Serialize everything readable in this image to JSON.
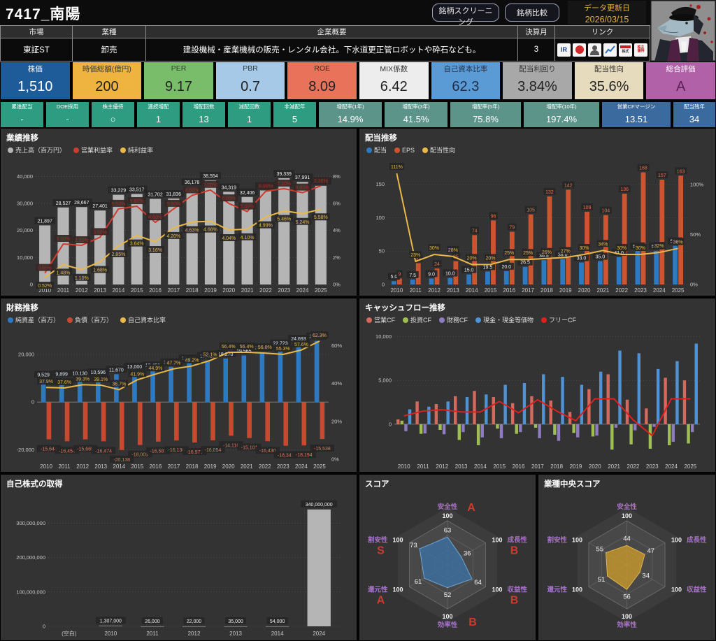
{
  "header": {
    "title": "7417_南陽",
    "screening_button": "銘柄スクリーニング",
    "compare_button": "銘柄比較",
    "update_label": "データ更新日",
    "update_date": "2026/03/15"
  },
  "info": {
    "market_label": "市場",
    "market_value": "東証ST",
    "industry_label": "業種",
    "industry_value": "卸売",
    "profile_label": "企業概要",
    "profile_value": "建設機械・産業機械の販売・レンタル会社。下水道更正管ロボットや砕石なども。",
    "fiscal_label": "決算月",
    "fiscal_value": "3",
    "links_label": "リンク",
    "links": {
      "ir": "IR",
      "minkabu": "株式",
      "yutai_line1": "株主",
      "yutai_line2": "優待"
    }
  },
  "metrics_primary": [
    {
      "label": "株価",
      "value": "1,510",
      "bg": "#1e5c99",
      "fg": "#ffffff",
      "label_fg": "#ffffff"
    },
    {
      "label": "時価総額(億円)",
      "value": "200",
      "bg": "#efb33f",
      "fg": "#222222",
      "label_fg": "#3a3a3a"
    },
    {
      "label": "PER",
      "value": "9.17",
      "bg": "#79bd6b",
      "fg": "#222222",
      "label_fg": "#2b452b"
    },
    {
      "label": "PBR",
      "value": "0.7",
      "bg": "#a7c9e8",
      "fg": "#222222",
      "label_fg": "#2c3c4c"
    },
    {
      "label": "ROE",
      "value": "8.09",
      "bg": "#e8735a",
      "fg": "#222222",
      "label_fg": "#47201a"
    },
    {
      "label": "MIX係数",
      "value": "6.42",
      "bg": "#ededed",
      "fg": "#222222",
      "label_fg": "#333333"
    },
    {
      "label": "自己資本比率",
      "value": "62.3",
      "bg": "#5b9bd5",
      "fg": "#1c2f4a",
      "label_fg": "#1c2f4a"
    },
    {
      "label": "配当利回り",
      "value": "3.84%",
      "bg": "#a8a8a8",
      "fg": "#222222",
      "label_fg": "#333333"
    },
    {
      "label": "配当性向",
      "value": "35.6%",
      "bg": "#e6dbbd",
      "fg": "#222222",
      "label_fg": "#333333"
    },
    {
      "label": "総合評価",
      "value": "A",
      "bg": "#b161a8",
      "fg": "#5e2157",
      "label_fg": "#ffffff"
    }
  ],
  "metrics_secondary": [
    {
      "label": "累進配当",
      "value": "-",
      "bg": "#2d9c80"
    },
    {
      "label": "DOE採用",
      "value": "-",
      "bg": "#2d9c80"
    },
    {
      "label": "株主優待",
      "value": "○",
      "bg": "#2d9c80"
    },
    {
      "label": "連続増配",
      "value": "1",
      "bg": "#2d9c80"
    },
    {
      "label": "増配回数",
      "value": "13",
      "bg": "#2d9c80"
    },
    {
      "label": "減配回数",
      "value": "1",
      "bg": "#2d9c80"
    },
    {
      "label": "非減配年",
      "value": "5",
      "bg": "#2d9c80"
    },
    {
      "label": "増配率(1年)",
      "value": "14.9%",
      "bg": "#5d9489"
    },
    {
      "label": "増配率(3年)",
      "value": "41.5%",
      "bg": "#5d9489"
    },
    {
      "label": "増配率(5年)",
      "value": "75.8%",
      "bg": "#5d9489"
    },
    {
      "label": "増配率(10年)",
      "value": "197.4%",
      "bg": "#5d9489"
    },
    {
      "label": "営業CFマージン",
      "value": "13.51",
      "bg": "#3a6a9e"
    },
    {
      "label": "配当残年",
      "value": "34",
      "bg": "#3a6a9e"
    }
  ],
  "charts": {
    "performance": {
      "type": "combo-bar-line",
      "title": "業績推移",
      "legend": [
        {
          "name": "売上高（百万円）",
          "color": "#b5b5b5"
        },
        {
          "name": "営業利益率",
          "color": "#cf3b2f"
        },
        {
          "name": "純利益率",
          "color": "#e9b949"
        }
      ],
      "categories": [
        "2010",
        "2011",
        "2012",
        "2013",
        "2014",
        "2015",
        "2016",
        "2017",
        "2018",
        "2019",
        "2020",
        "2021",
        "2022",
        "2023",
        "2024",
        "2025"
      ],
      "sales": [
        21897,
        28527,
        28667,
        27401,
        33229,
        33517,
        31702,
        31836,
        36178,
        38554,
        34319,
        32406,
        34818,
        39339,
        37991,
        36535
      ],
      "op_margin": [
        0.85,
        3.0,
        2.9,
        3.5,
        5.6,
        5.8,
        4.6,
        5.6,
        6.6,
        7.0,
        6.0,
        5.4,
        6.9,
        7.1,
        6.8,
        7.3
      ],
      "net_margin": [
        0.52,
        1.48,
        1.1,
        1.68,
        2.85,
        3.64,
        3.16,
        4.2,
        4.63,
        4.68,
        4.04,
        4.1,
        4.99,
        5.46,
        5.24,
        5.58
      ],
      "left_ticks": [
        {
          "v": 0,
          "t": "0"
        },
        {
          "v": 10000,
          "t": "10,000"
        },
        {
          "v": 20000,
          "t": "20,000"
        },
        {
          "v": 30000,
          "t": "30,000"
        },
        {
          "v": 40000,
          "t": "40,000"
        }
      ],
      "right_ticks": [
        {
          "v": 0,
          "t": "0%"
        },
        {
          "v": 2,
          "t": "2%"
        },
        {
          "v": 4,
          "t": "4%"
        },
        {
          "v": 6,
          "t": "6%"
        },
        {
          "v": 8,
          "t": "8%"
        }
      ]
    },
    "dividend": {
      "type": "combo-bar-line",
      "title": "配当推移",
      "legend": [
        {
          "name": "配当",
          "color": "#2e7ac2"
        },
        {
          "name": "EPS",
          "color": "#cd5430"
        },
        {
          "name": "配当性向",
          "color": "#e9b949"
        }
      ],
      "categories": [
        "2010",
        "2011",
        "2012",
        "2013",
        "2014",
        "2015",
        "2016",
        "2017",
        "2018",
        "2019",
        "2020",
        "2021",
        "2022",
        "2023",
        "2024",
        "2025"
      ],
      "dividend": [
        5.0,
        7.5,
        9.0,
        10.0,
        15.0,
        19.5,
        20.0,
        26.5,
        36.5,
        38.0,
        33.0,
        35.0,
        41.0,
        50.5,
        50.5,
        58.0
      ],
      "eps": [
        9,
        32,
        24,
        35,
        74,
        96,
        79,
        105,
        132,
        142,
        109,
        104,
        136,
        168,
        157,
        163
      ],
      "payout": [
        111,
        23,
        30,
        28,
        20,
        20,
        25,
        25,
        26,
        27,
        30,
        34,
        30,
        30,
        32,
        36
      ],
      "left_ticks": [
        {
          "v": 0,
          "t": "0"
        },
        {
          "v": 50,
          "t": "50"
        },
        {
          "v": 100,
          "t": "100"
        },
        {
          "v": 150,
          "t": "150"
        }
      ],
      "right_ticks": [
        {
          "v": 0,
          "t": "0%"
        },
        {
          "v": 50,
          "t": "50%"
        },
        {
          "v": 100,
          "t": "100%"
        }
      ]
    },
    "financial": {
      "type": "combo-bar-line",
      "title": "財務推移",
      "legend": [
        {
          "name": "純資産（百万）",
          "color": "#2e7ac2"
        },
        {
          "name": "負債（百万）",
          "color": "#c7492f"
        },
        {
          "name": "自己資本比率",
          "color": "#e9b949"
        }
      ],
      "categories": [
        "2010",
        "2011",
        "2012",
        "2013",
        "2014",
        "2015",
        "2016",
        "2017",
        "2018",
        "2019",
        "2020",
        "2021",
        "2022",
        "2023",
        "2024",
        "2025"
      ],
      "equity": [
        9529,
        9899,
        10130,
        10596,
        11670,
        13000,
        13491,
        14798,
        16446,
        17428,
        18270,
        19565,
        20880,
        22723,
        24693,
        25663
      ],
      "debt": [
        -15644,
        -16454,
        -15665,
        -16474,
        -20138,
        -18005,
        -16583,
        -16136,
        -16977,
        -16054,
        -14116,
        -15101,
        -16430,
        -18341,
        -18194,
        -15538
      ],
      "equity_ratio": [
        37.9,
        37.6,
        39.3,
        39.1,
        36.7,
        41.9,
        44.9,
        47.7,
        49.2,
        52.1,
        56.4,
        56.4,
        56.0,
        55.3,
        57.6,
        62.3
      ],
      "left_ticks": [
        {
          "v": -20000,
          "t": "-20,000"
        },
        {
          "v": 0,
          "t": "0"
        },
        {
          "v": 20000,
          "t": "20,000"
        }
      ],
      "right_ticks": [
        {
          "v": 0,
          "t": "0%"
        },
        {
          "v": 20,
          "t": "20%"
        },
        {
          "v": 40,
          "t": "40%"
        },
        {
          "v": 60,
          "t": "60%"
        }
      ]
    },
    "cashflow": {
      "type": "grouped-bar-line",
      "title": "キャッシュフロー推移",
      "legend": [
        {
          "name": "営業CF",
          "color": "#d4695e"
        },
        {
          "name": "投資CF",
          "color": "#9fbf52"
        },
        {
          "name": "財務CF",
          "color": "#8f7cc0"
        },
        {
          "name": "現金・現金等価物",
          "color": "#4f93d6"
        },
        {
          "name": "フリーCF",
          "color": "#e01f1f"
        }
      ],
      "categories": [
        "2010",
        "2011",
        "2012",
        "2013",
        "2014",
        "2015",
        "2016",
        "2017",
        "2018",
        "2019",
        "2020",
        "2021",
        "2022",
        "2023",
        "2024",
        "2025"
      ],
      "operating": [
        550,
        2600,
        2300,
        3200,
        3800,
        3100,
        2400,
        3200,
        2700,
        1400,
        4000,
        5700,
        2800,
        1800,
        5300,
        5000
      ],
      "investing": [
        400,
        -1100,
        -650,
        -1800,
        -2400,
        -500,
        -1100,
        -400,
        -1200,
        -1000,
        -1400,
        -2900,
        -2300,
        -2800,
        -2400,
        -2200
      ],
      "financing": [
        -800,
        -1050,
        -1150,
        -900,
        -1500,
        -1600,
        -900,
        -1600,
        -1900,
        -1500,
        -1300,
        -400,
        -700,
        -300,
        -2000,
        -900
      ],
      "cash": [
        1700,
        2000,
        2600,
        3100,
        3400,
        4500,
        4700,
        5700,
        5400,
        4500,
        6000,
        8400,
        8100,
        6300,
        7200,
        9200
      ],
      "free": [
        950,
        1500,
        1650,
        1400,
        1400,
        2600,
        1300,
        2800,
        1500,
        400,
        2900,
        2900,
        500,
        -1300,
        2900,
        2900
      ],
      "left_ticks": [
        {
          "v": 0,
          "t": "0"
        },
        {
          "v": 5000,
          "t": "5,000"
        },
        {
          "v": 10000,
          "t": "10,000"
        }
      ]
    },
    "buyback": {
      "type": "bar",
      "title": "自己株式の取得",
      "bar_color": "#b5b5b5",
      "categories": [
        "(空白)",
        "2010",
        "2011",
        "2012",
        "2013",
        "2014",
        "2024"
      ],
      "values": [
        null,
        1307000,
        26000,
        22000,
        35000,
        54000,
        340000000
      ],
      "left_ticks": [
        {
          "v": 0,
          "t": "0"
        },
        {
          "v": 100000000,
          "t": "100,000,000"
        },
        {
          "v": 200000000,
          "t": "200,000,000"
        },
        {
          "v": 300000000,
          "t": "300,000,000"
        }
      ]
    },
    "score_radar": {
      "type": "radar",
      "title": "スコア",
      "max": 100,
      "tick_label": "100",
      "axes": [
        {
          "label": "安全性",
          "grade": "A"
        },
        {
          "label": "成長性",
          "grade": "B"
        },
        {
          "label": "収益性",
          "grade": "B"
        },
        {
          "label": "効率性",
          "grade": "B"
        },
        {
          "label": "還元性",
          "grade": "A"
        },
        {
          "label": "割安性",
          "grade": "S"
        }
      ],
      "values": [
        63,
        36,
        64,
        52,
        61,
        73
      ],
      "fill": "#3e6f9f",
      "stroke": "#6fa5d5",
      "axis_color": "#a671c9",
      "grade_color": "#cf3a2a"
    },
    "industry_radar": {
      "type": "radar",
      "title": "業種中央スコア",
      "max": 100,
      "tick_label": "100",
      "axes": [
        {
          "label": "安全性",
          "grade": ""
        },
        {
          "label": "成長性",
          "grade": ""
        },
        {
          "label": "収益性",
          "grade": ""
        },
        {
          "label": "効率性",
          "grade": ""
        },
        {
          "label": "還元性",
          "grade": ""
        },
        {
          "label": "割安性",
          "grade": ""
        }
      ],
      "values": [
        44,
        47,
        34,
        56,
        51,
        55
      ],
      "fill": "#c2952f",
      "stroke": "#dcb44f",
      "axis_color": "#a671c9",
      "grade_color": "#cf3a2a"
    }
  }
}
